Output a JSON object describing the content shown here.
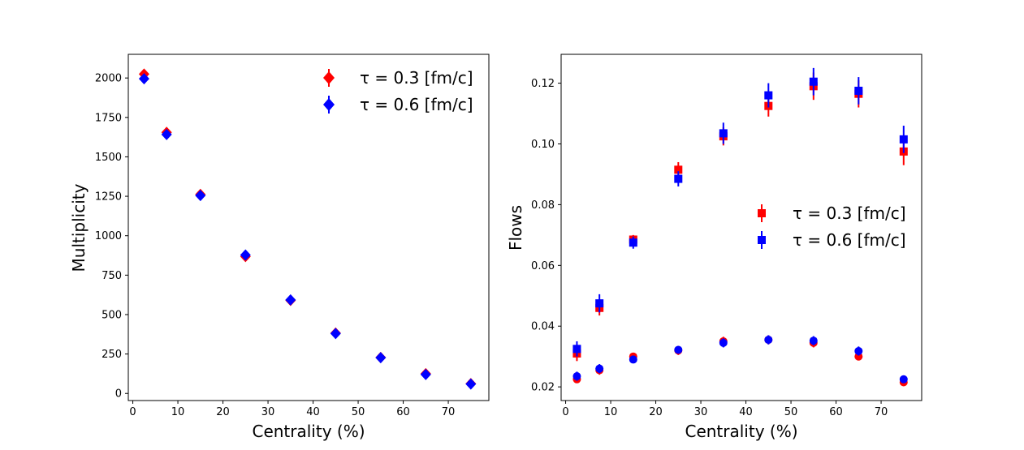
{
  "chart_data": [
    {
      "type": "scatter",
      "title": "",
      "xlabel": "Centrality (%)",
      "ylabel": "Multiplicity",
      "xlim": [
        -1,
        79
      ],
      "ylim": [
        -45,
        2150
      ],
      "xticks": [
        0,
        10,
        20,
        30,
        40,
        50,
        60,
        70
      ],
      "yticks": [
        0,
        250,
        500,
        750,
        1000,
        1250,
        1500,
        1750,
        2000
      ],
      "grid": false,
      "legend_position": "top-right",
      "series": [
        {
          "name": "τ = 0.3 [fm/c]",
          "color": "#ff0000",
          "marker": "diamond",
          "x": [
            2.5,
            7.5,
            15,
            25,
            35,
            45,
            55,
            65,
            75
          ],
          "y": [
            2025,
            1655,
            1262,
            868,
            590,
            383,
            228,
            125,
            62
          ],
          "err": [
            10,
            10,
            8,
            6,
            5,
            4,
            3,
            3,
            2
          ]
        },
        {
          "name": "τ = 0.6 [fm/c]",
          "color": "#0000ff",
          "marker": "diamond",
          "x": [
            2.5,
            7.5,
            15,
            25,
            35,
            45,
            55,
            65,
            75
          ],
          "y": [
            1995,
            1642,
            1255,
            878,
            593,
            380,
            227,
            120,
            60
          ],
          "err": [
            10,
            10,
            8,
            6,
            5,
            4,
            3,
            3,
            2
          ]
        }
      ]
    },
    {
      "type": "scatter",
      "title": "",
      "xlabel": "Centrality (%)",
      "ylabel": "Flows",
      "xlim": [
        -1,
        79
      ],
      "ylim": [
        0.0155,
        0.1295
      ],
      "xticks": [
        0,
        10,
        20,
        30,
        40,
        50,
        60,
        70
      ],
      "yticks": [
        0.02,
        0.04,
        0.06,
        0.08,
        0.1,
        0.12
      ],
      "ytick_labels": [
        "0.02",
        "0.04",
        "0.06",
        "0.08",
        "0.10",
        "0.12"
      ],
      "grid": false,
      "legend_position": "center-right",
      "series": [
        {
          "name": "τ = 0.3 [fm/c]",
          "color": "#ff0000",
          "marker": "square",
          "x": [
            2.5,
            7.5,
            15,
            25,
            35,
            45,
            55,
            65,
            75
          ],
          "y": [
            0.031,
            0.046,
            0.0685,
            0.0915,
            0.1025,
            0.1125,
            0.119,
            0.1165,
            0.0975
          ],
          "err": [
            0.0025,
            0.0025,
            0.0015,
            0.0025,
            0.003,
            0.0035,
            0.0045,
            0.0045,
            0.0045
          ]
        },
        {
          "name": "",
          "color": "#ff0000",
          "marker": "circle",
          "x": [
            2.5,
            7.5,
            15,
            25,
            35,
            45,
            55,
            65,
            75
          ],
          "y": [
            0.0225,
            0.0255,
            0.03,
            0.032,
            0.035,
            0.0355,
            0.0345,
            0.03,
            0.0215
          ],
          "err": [
            0.001,
            0.0015,
            0.001,
            0.0015,
            0.0015,
            0.0015,
            0.0015,
            0.001,
            0.001
          ]
        },
        {
          "name": "τ = 0.6 [fm/c]",
          "color": "#0000ff",
          "marker": "square",
          "x": [
            2.5,
            7.5,
            15,
            25,
            35,
            45,
            55,
            65,
            75
          ],
          "y": [
            0.0325,
            0.0475,
            0.0675,
            0.0885,
            0.1035,
            0.116,
            0.1205,
            0.1175,
            0.1015
          ],
          "err": [
            0.0025,
            0.003,
            0.002,
            0.0025,
            0.0035,
            0.004,
            0.0045,
            0.0045,
            0.0045
          ]
        },
        {
          "name": "",
          "color": "#0000ff",
          "marker": "circle",
          "x": [
            2.5,
            7.5,
            15,
            25,
            35,
            45,
            55,
            65,
            75
          ],
          "y": [
            0.0235,
            0.026,
            0.029,
            0.0322,
            0.0345,
            0.0355,
            0.0352,
            0.0318,
            0.0225
          ],
          "err": [
            0.0015,
            0.0015,
            0.001,
            0.001,
            0.0015,
            0.0015,
            0.0015,
            0.0015,
            0.001
          ]
        }
      ]
    }
  ]
}
